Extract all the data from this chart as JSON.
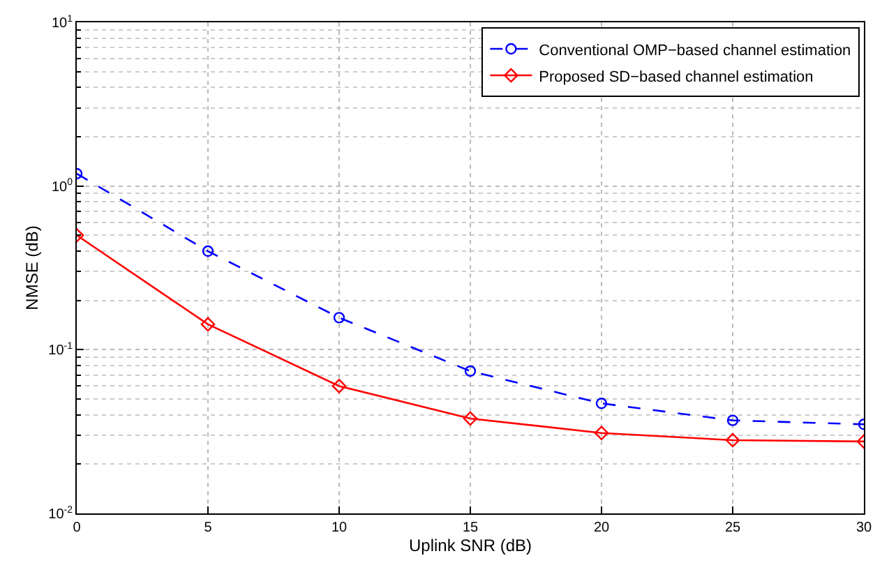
{
  "chart_data": {
    "type": "line",
    "xlabel": "Uplink SNR (dB)",
    "ylabel": "NMSE (dB)",
    "x": [
      0,
      5,
      10,
      15,
      20,
      25,
      30
    ],
    "series": [
      {
        "name": "Conventional OMP−based channel estimation",
        "color": "#0000ff",
        "marker": "circle",
        "line_style": "dashed",
        "values": [
          1.19,
          0.4,
          0.157,
          0.074,
          0.047,
          0.037,
          0.035
        ]
      },
      {
        "name": "Proposed SD−based channel estimation",
        "color": "#ff0000",
        "marker": "diamond",
        "line_style": "solid",
        "values": [
          0.5,
          0.143,
          0.06,
          0.038,
          0.031,
          0.028,
          0.0275
        ]
      }
    ],
    "log": "y",
    "xlim": [
      0,
      30
    ],
    "xticks": [
      0,
      5,
      10,
      15,
      20,
      25,
      30
    ],
    "ylim": [
      0.01,
      10
    ],
    "yticks": [
      {
        "value": 0.01,
        "label": "10$^{-2}$"
      },
      {
        "value": 0.1,
        "label": "10$^{-1}$"
      },
      {
        "value": 1,
        "label": "10$^{0}$"
      },
      {
        "value": 10,
        "label": "10$^{1}$"
      }
    ],
    "grid": true,
    "legend": "top right"
  }
}
